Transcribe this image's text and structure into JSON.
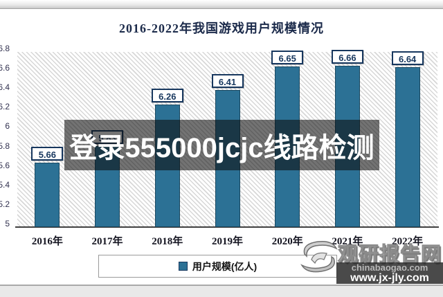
{
  "chart_data": {
    "type": "bar",
    "title": "2016-2022年我国游戏用户规模情况",
    "categories": [
      "2016年",
      "2017年",
      "2018年",
      "2019年",
      "2020年",
      "2021年",
      "2022年"
    ],
    "values": [
      5.66,
      5.83,
      6.26,
      6.41,
      6.65,
      6.66,
      6.64
    ],
    "data_labels": [
      "5.66",
      "5.83",
      "6.26",
      "6.41",
      "6.65",
      "6.66",
      "6.64"
    ],
    "series_name": "用户规模(亿人)",
    "xlabel": "",
    "ylabel": "",
    "ylim": [
      5,
      6.8
    ],
    "ytick_values": [
      6.8,
      6.6,
      6.4,
      6.2,
      6.0,
      5.8,
      5.6,
      5.4,
      5.2,
      5.0
    ],
    "ytick_labels": [
      "6.8",
      "6.6",
      "6.4",
      "6.2",
      "6",
      "5.8",
      "5.6",
      "5.4",
      "5.2",
      "5"
    ],
    "grid": false,
    "plot_background": "diagonal-hatch",
    "legend_position": "bottom",
    "bar_color": "#2c7195",
    "bar_border_color": "#1a4860",
    "label_box_border_color": "#17375e"
  },
  "legend": {
    "label": "用户规模(亿人)"
  },
  "overlay": {
    "text": "登录555000jcjc线路检测"
  },
  "watermark": {
    "brand": "观研报告网",
    "domain": "chinabaogao.com",
    "url": "www.jx-jly.com"
  }
}
